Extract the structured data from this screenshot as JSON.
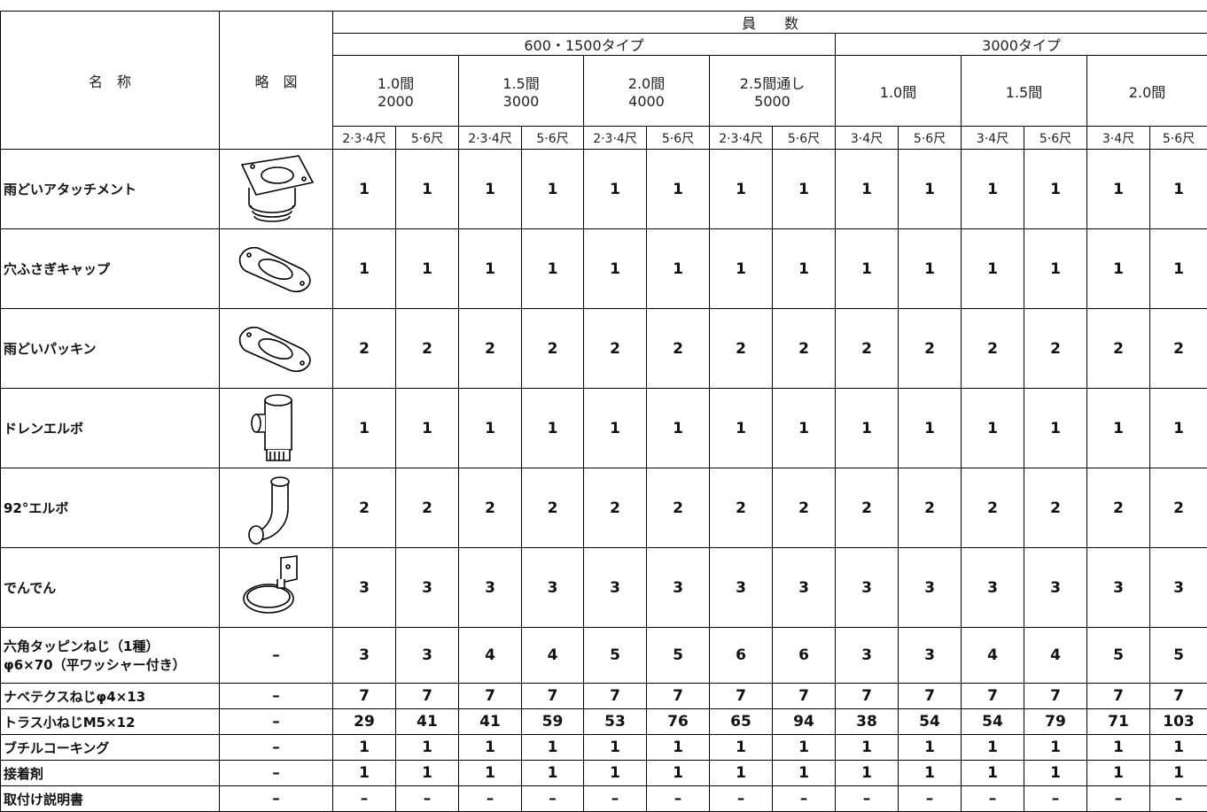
{
  "table": {
    "header": {
      "name": "名　称",
      "sketch": "略　図",
      "count": "員　　数",
      "groups": [
        {
          "label": "600・1500タイプ",
          "sizes": [
            [
              "1.0間",
              "2000"
            ],
            [
              "1.5間",
              "3000"
            ],
            [
              "2.0間",
              "4000"
            ],
            [
              "2.5間通し",
              "5000"
            ]
          ],
          "subs": [
            "2·3·4尺",
            "5·6尺",
            "2·3·4尺",
            "5·6尺",
            "2·3·4尺",
            "5·6尺",
            "2·3·4尺",
            "5·6尺"
          ]
        },
        {
          "label": "3000タイプ",
          "sizes": [
            [
              "1.0間"
            ],
            [
              "1.5間"
            ],
            [
              "2.0間"
            ]
          ],
          "subs": [
            "3·4尺",
            "5·6尺",
            "3·4尺",
            "5·6尺",
            "3·4尺",
            "5·6尺"
          ]
        }
      ]
    },
    "rows": [
      {
        "name": [
          "雨どいアタッチメント"
        ],
        "values": [
          1,
          1,
          1,
          1,
          1,
          1,
          1,
          1,
          1,
          1,
          1,
          1,
          1,
          1
        ]
      },
      {
        "name": [
          "穴ふさぎキャップ"
        ],
        "values": [
          1,
          1,
          1,
          1,
          1,
          1,
          1,
          1,
          1,
          1,
          1,
          1,
          1,
          1
        ]
      },
      {
        "name": [
          "雨どいパッキン"
        ],
        "values": [
          2,
          2,
          2,
          2,
          2,
          2,
          2,
          2,
          2,
          2,
          2,
          2,
          2,
          2
        ]
      },
      {
        "name": [
          "ドレンエルボ"
        ],
        "values": [
          1,
          1,
          1,
          1,
          1,
          1,
          1,
          1,
          1,
          1,
          1,
          1,
          1,
          1
        ]
      },
      {
        "name": [
          "92°エルボ"
        ],
        "values": [
          2,
          2,
          2,
          2,
          2,
          2,
          2,
          2,
          2,
          2,
          2,
          2,
          2,
          2
        ]
      },
      {
        "name": [
          "でんでん"
        ],
        "values": [
          3,
          3,
          3,
          3,
          3,
          3,
          3,
          3,
          3,
          3,
          3,
          3,
          3,
          3
        ]
      },
      {
        "name": [
          "六角タッピンねじ（1種）",
          "φ6×70（平ワッシャー付き）"
        ],
        "sketch": "–",
        "values": [
          3,
          3,
          4,
          4,
          5,
          5,
          6,
          6,
          3,
          3,
          4,
          4,
          5,
          5
        ]
      },
      {
        "name": [
          "ナベテクスねじφ4×13"
        ],
        "sketch": "–",
        "values": [
          7,
          7,
          7,
          7,
          7,
          7,
          7,
          7,
          7,
          7,
          7,
          7,
          7,
          7
        ]
      },
      {
        "name": [
          "トラス小ねじM5×12"
        ],
        "sketch": "–",
        "values": [
          29,
          41,
          41,
          59,
          53,
          76,
          65,
          94,
          38,
          54,
          54,
          79,
          71,
          103
        ]
      },
      {
        "name": [
          "ブチルコーキング"
        ],
        "sketch": "–",
        "values": [
          1,
          1,
          1,
          1,
          1,
          1,
          1,
          1,
          1,
          1,
          1,
          1,
          1,
          1
        ]
      },
      {
        "name": [
          "接着剤"
        ],
        "sketch": "–",
        "values": [
          1,
          1,
          1,
          1,
          1,
          1,
          1,
          1,
          1,
          1,
          1,
          1,
          1,
          1
        ]
      },
      {
        "name": [
          "取付け説明書"
        ],
        "sketch": "–",
        "values": [
          "–",
          "–",
          "–",
          "–",
          "–",
          "–",
          "–",
          "–",
          "–",
          "–",
          "–",
          "–",
          "–",
          "–"
        ]
      }
    ]
  }
}
